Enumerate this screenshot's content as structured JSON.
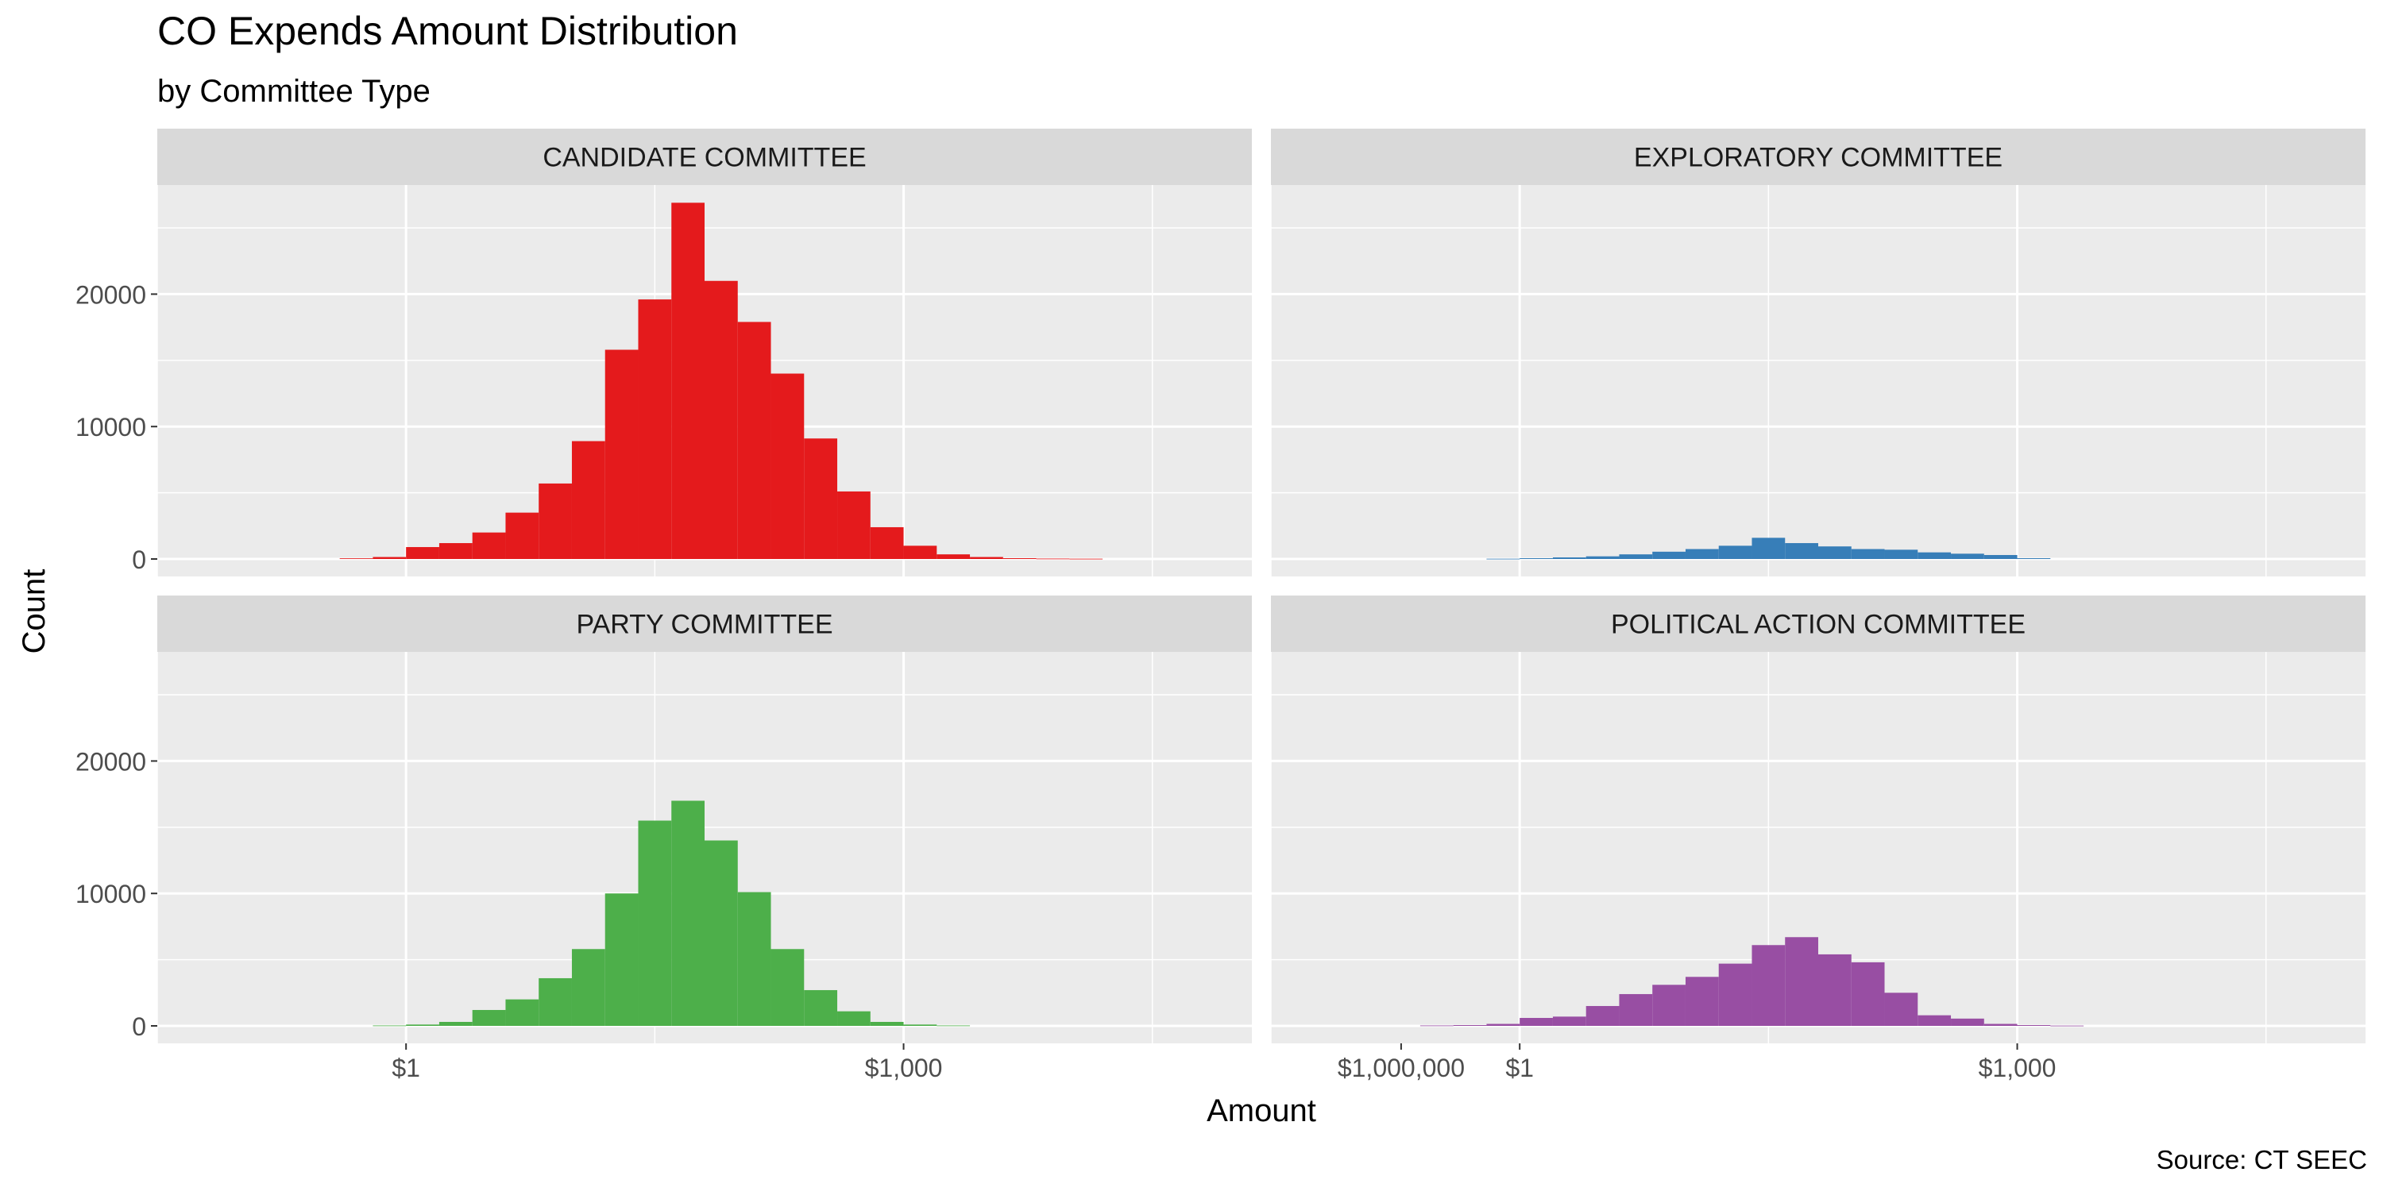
{
  "chart_data": {
    "type": "bar",
    "title": "CO Expends Amount Distribution",
    "subtitle": "by Committee Type",
    "xlabel": "Amount",
    "ylabel": "Count",
    "caption": "Source: CT SEEC",
    "x_scale": "log10",
    "x_ticks": [
      "$1",
      "$1,000",
      "$1,000,000"
    ],
    "y_ticks": [
      "0",
      "10000",
      "20000"
    ],
    "ylim": [
      0,
      28000
    ],
    "grid": true,
    "facet_layout": "2x2",
    "bin_width_log10": 0.2,
    "panels": [
      {
        "name": "CANDIDATE COMMITTEE",
        "color": "#e41a1c",
        "bins": [
          {
            "x0": -0.4,
            "count": 50
          },
          {
            "x0": -0.2,
            "count": 150
          },
          {
            "x0": 0.0,
            "count": 900
          },
          {
            "x0": 0.2,
            "count": 1200
          },
          {
            "x0": 0.4,
            "count": 2000
          },
          {
            "x0": 0.6,
            "count": 3500
          },
          {
            "x0": 0.8,
            "count": 5700
          },
          {
            "x0": 1.0,
            "count": 8900
          },
          {
            "x0": 1.2,
            "count": 15800
          },
          {
            "x0": 1.4,
            "count": 19600
          },
          {
            "x0": 1.6,
            "count": 26900
          },
          {
            "x0": 1.8,
            "count": 21000
          },
          {
            "x0": 2.0,
            "count": 17900
          },
          {
            "x0": 2.2,
            "count": 14000
          },
          {
            "x0": 2.4,
            "count": 9100
          },
          {
            "x0": 2.6,
            "count": 5100
          },
          {
            "x0": 2.8,
            "count": 2400
          },
          {
            "x0": 3.0,
            "count": 1000
          },
          {
            "x0": 3.2,
            "count": 350
          },
          {
            "x0": 3.4,
            "count": 150
          },
          {
            "x0": 3.6,
            "count": 60
          },
          {
            "x0": 3.8,
            "count": 30
          },
          {
            "x0": 4.0,
            "count": 20
          }
        ]
      },
      {
        "name": "EXPLORATORY COMMITTEE",
        "color": "#377eb8",
        "bins": [
          {
            "x0": -0.2,
            "count": 20
          },
          {
            "x0": 0.0,
            "count": 60
          },
          {
            "x0": 0.2,
            "count": 120
          },
          {
            "x0": 0.4,
            "count": 200
          },
          {
            "x0": 0.6,
            "count": 350
          },
          {
            "x0": 0.8,
            "count": 550
          },
          {
            "x0": 1.0,
            "count": 750
          },
          {
            "x0": 1.2,
            "count": 1000
          },
          {
            "x0": 1.4,
            "count": 1600
          },
          {
            "x0": 1.6,
            "count": 1200
          },
          {
            "x0": 1.8,
            "count": 950
          },
          {
            "x0": 2.0,
            "count": 750
          },
          {
            "x0": 2.2,
            "count": 700
          },
          {
            "x0": 2.4,
            "count": 500
          },
          {
            "x0": 2.6,
            "count": 400
          },
          {
            "x0": 2.8,
            "count": 300
          },
          {
            "x0": 3.0,
            "count": 60
          }
        ]
      },
      {
        "name": "PARTY COMMITTEE",
        "color": "#4daf4a",
        "bins": [
          {
            "x0": -0.2,
            "count": 30
          },
          {
            "x0": 0.0,
            "count": 100
          },
          {
            "x0": 0.2,
            "count": 300
          },
          {
            "x0": 0.4,
            "count": 1200
          },
          {
            "x0": 0.6,
            "count": 2000
          },
          {
            "x0": 0.8,
            "count": 3600
          },
          {
            "x0": 1.0,
            "count": 5800
          },
          {
            "x0": 1.2,
            "count": 10000
          },
          {
            "x0": 1.4,
            "count": 15500
          },
          {
            "x0": 1.6,
            "count": 17000
          },
          {
            "x0": 1.8,
            "count": 14000
          },
          {
            "x0": 2.0,
            "count": 10100
          },
          {
            "x0": 2.2,
            "count": 5800
          },
          {
            "x0": 2.4,
            "count": 2700
          },
          {
            "x0": 2.6,
            "count": 1100
          },
          {
            "x0": 2.8,
            "count": 300
          },
          {
            "x0": 3.0,
            "count": 100
          },
          {
            "x0": 3.2,
            "count": 30
          }
        ]
      },
      {
        "name": "POLITICAL ACTION COMMITTEE",
        "color": "#984ea3",
        "bins": [
          {
            "x0": -0.6,
            "count": 30
          },
          {
            "x0": -0.4,
            "count": 60
          },
          {
            "x0": -0.2,
            "count": 150
          },
          {
            "x0": 0.0,
            "count": 600
          },
          {
            "x0": 0.2,
            "count": 700
          },
          {
            "x0": 0.4,
            "count": 1500
          },
          {
            "x0": 0.6,
            "count": 2400
          },
          {
            "x0": 0.8,
            "count": 3100
          },
          {
            "x0": 1.0,
            "count": 3700
          },
          {
            "x0": 1.2,
            "count": 4700
          },
          {
            "x0": 1.4,
            "count": 6100
          },
          {
            "x0": 1.6,
            "count": 6700
          },
          {
            "x0": 1.8,
            "count": 5400
          },
          {
            "x0": 2.0,
            "count": 4800
          },
          {
            "x0": 2.2,
            "count": 2500
          },
          {
            "x0": 2.4,
            "count": 800
          },
          {
            "x0": 2.6,
            "count": 550
          },
          {
            "x0": 2.8,
            "count": 150
          },
          {
            "x0": 3.0,
            "count": 60
          },
          {
            "x0": 3.2,
            "count": 20
          }
        ]
      }
    ]
  }
}
